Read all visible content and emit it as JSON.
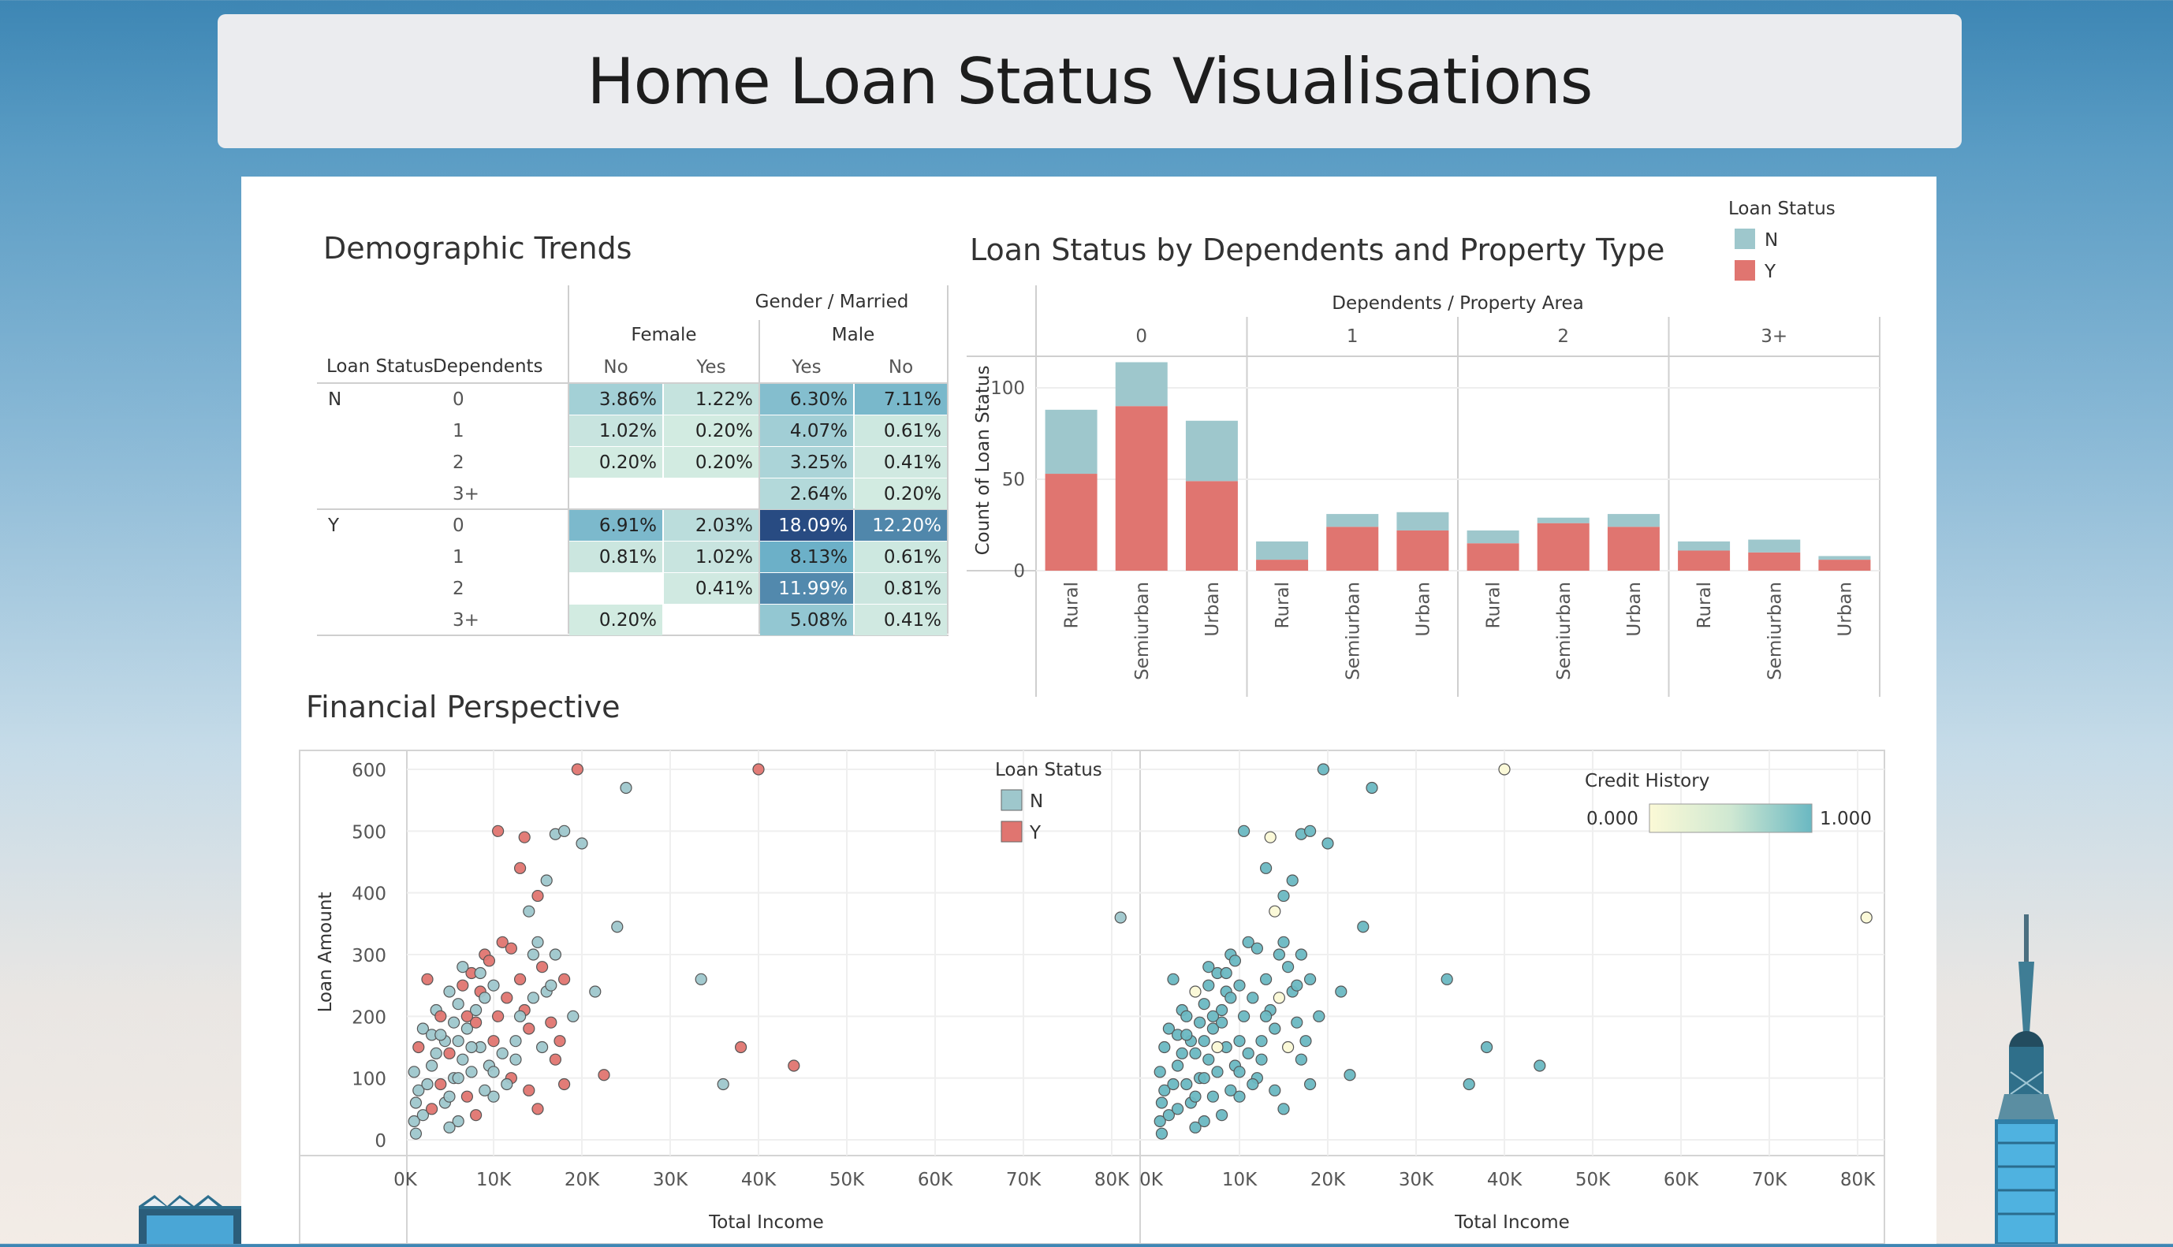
{
  "header": {
    "title": "Home Loan Status Visualisations"
  },
  "colors": {
    "N": "#9ec7cc",
    "Y": "#e07570",
    "axis": "#cfcfcf",
    "grid": "#eeeeee"
  },
  "demographic": {
    "title": "Demographic Trends",
    "top_header": "Gender / Married",
    "row_header_1": "Loan Status",
    "row_header_2": "Dependents",
    "genders": [
      "Female",
      "Male"
    ],
    "columns": [
      "No",
      "Yes",
      "Yes",
      "No"
    ],
    "statuses": [
      "N",
      "Y"
    ],
    "dependents": [
      "0",
      "1",
      "2",
      "3+"
    ],
    "cells": [
      [
        [
          "3.86%",
          "1.22%",
          "6.30%",
          "7.11%"
        ],
        [
          "1.02%",
          "0.20%",
          "4.07%",
          "0.61%"
        ],
        [
          "0.20%",
          "0.20%",
          "3.25%",
          "0.41%"
        ],
        [
          "",
          "",
          "2.64%",
          "0.20%"
        ]
      ],
      [
        [
          "6.91%",
          "2.03%",
          "18.09%",
          "12.20%"
        ],
        [
          "0.81%",
          "1.02%",
          "8.13%",
          "0.61%"
        ],
        [
          "",
          "0.41%",
          "11.99%",
          "0.81%"
        ],
        [
          "0.20%",
          "",
          "5.08%",
          "0.41%"
        ]
      ]
    ]
  },
  "bar_chart": {
    "title": "Loan Status by Dependents and Property Type",
    "top_header": "Dependents / Property Area",
    "ylabel": "Count of Loan Status",
    "legend_title": "Loan Status",
    "legend_items": [
      "N",
      "Y"
    ]
  },
  "financial": {
    "title": "Financial Perspective",
    "xlabel": "Total Income",
    "ylabel": "Loan Amount",
    "legend_title": "Loan Status",
    "legend_items": [
      "N",
      "Y"
    ],
    "credit_title": "Credit History",
    "credit_min": "0.000",
    "credit_max": "1.000"
  },
  "chart_data": [
    {
      "type": "table",
      "title": "Demographic Trends",
      "row_dims": [
        "Loan Status",
        "Dependents"
      ],
      "col_dims": [
        "Gender",
        "Married"
      ],
      "columns": [
        [
          "Female",
          "No"
        ],
        [
          "Female",
          "Yes"
        ],
        [
          "Male",
          "Yes"
        ],
        [
          "Male",
          "No"
        ]
      ],
      "values": [
        [
          3.86,
          1.22,
          6.3,
          7.11
        ],
        [
          1.02,
          0.2,
          4.07,
          0.61
        ],
        [
          0.2,
          0.2,
          3.25,
          0.41
        ],
        [
          null,
          null,
          2.64,
          0.2
        ],
        [
          6.91,
          2.03,
          18.09,
          12.2
        ],
        [
          0.81,
          1.02,
          8.13,
          0.61
        ],
        [
          null,
          0.41,
          11.99,
          0.81
        ],
        [
          0.2,
          null,
          5.08,
          0.41
        ]
      ]
    },
    {
      "type": "bar",
      "stacked": true,
      "title": "Loan Status by Dependents and Property Type",
      "groups": [
        "0",
        "1",
        "2",
        "3+"
      ],
      "categories": [
        "Rural",
        "Semiurban",
        "Urban"
      ],
      "ylabel": "Count of Loan Status",
      "ylim": [
        0,
        120
      ],
      "yticks": [
        0,
        50,
        100
      ],
      "series": [
        {
          "name": "Y",
          "values": [
            [
              53,
              90,
              49
            ],
            [
              6,
              24,
              22
            ],
            [
              15,
              26,
              24
            ],
            [
              11,
              10,
              6
            ]
          ]
        },
        {
          "name": "N",
          "values": [
            [
              35,
              24,
              33
            ],
            [
              10,
              7,
              10
            ],
            [
              7,
              3,
              7
            ],
            [
              5,
              7,
              2
            ]
          ]
        }
      ]
    },
    {
      "type": "scatter",
      "title": "Financial Perspective",
      "panels": [
        "Loan Status",
        "Credit History"
      ],
      "xlabel": "Total Income",
      "ylabel": "Loan Amount",
      "xlim": [
        0,
        85000
      ],
      "ylim": [
        0,
        620
      ],
      "xticks": [
        "0K",
        "10K",
        "20K",
        "30K",
        "40K",
        "50K",
        "60K",
        "70K",
        "80K"
      ],
      "yticks": [
        0,
        100,
        200,
        300,
        400,
        500,
        600
      ],
      "points": [
        [
          19500,
          600,
          "Y",
          1
        ],
        [
          25000,
          570,
          "N",
          1
        ],
        [
          40000,
          600,
          "Y",
          0
        ],
        [
          17000,
          495,
          "N",
          1
        ],
        [
          18000,
          500,
          "N",
          1
        ],
        [
          20000,
          480,
          "N",
          1
        ],
        [
          10500,
          500,
          "Y",
          1
        ],
        [
          13500,
          490,
          "Y",
          0
        ],
        [
          13000,
          440,
          "Y",
          1
        ],
        [
          16000,
          420,
          "N",
          1
        ],
        [
          15000,
          395,
          "Y",
          1
        ],
        [
          14000,
          370,
          "N",
          0
        ],
        [
          24000,
          345,
          "N",
          1
        ],
        [
          81000,
          360,
          "N",
          0
        ],
        [
          33500,
          260,
          "N",
          1
        ],
        [
          21500,
          240,
          "N",
          1
        ],
        [
          38000,
          150,
          "Y",
          1
        ],
        [
          36000,
          90,
          "N",
          1
        ],
        [
          44000,
          120,
          "Y",
          1
        ],
        [
          22500,
          105,
          "Y",
          1
        ],
        [
          18000,
          90,
          "Y",
          1
        ],
        [
          17000,
          130,
          "Y",
          1
        ],
        [
          12000,
          100,
          "Y",
          1
        ],
        [
          14000,
          80,
          "Y",
          1
        ],
        [
          15000,
          50,
          "Y",
          1
        ],
        [
          10000,
          70,
          "N",
          1
        ],
        [
          8000,
          40,
          "Y",
          1
        ],
        [
          6000,
          30,
          "N",
          1
        ],
        [
          5000,
          20,
          "N",
          1
        ],
        [
          2500,
          260,
          "Y",
          1
        ],
        [
          3500,
          210,
          "N",
          1
        ],
        [
          2000,
          180,
          "N",
          1
        ],
        [
          1500,
          150,
          "Y",
          1
        ],
        [
          1000,
          110,
          "N",
          1
        ],
        [
          1500,
          80,
          "N",
          1
        ],
        [
          1200,
          60,
          "N",
          1
        ],
        [
          1000,
          30,
          "N",
          1
        ],
        [
          1200,
          10,
          "N",
          1
        ],
        [
          3000,
          170,
          "N",
          1
        ],
        [
          4000,
          200,
          "Y",
          1
        ],
        [
          4500,
          160,
          "N",
          1
        ],
        [
          5000,
          140,
          "Y",
          1
        ],
        [
          5500,
          190,
          "N",
          1
        ],
        [
          6000,
          220,
          "N",
          1
        ],
        [
          6500,
          250,
          "Y",
          1
        ],
        [
          7000,
          180,
          "N",
          1
        ],
        [
          7500,
          270,
          "Y",
          1
        ],
        [
          8000,
          210,
          "N",
          1
        ],
        [
          8500,
          240,
          "Y",
          1
        ],
        [
          9000,
          300,
          "Y",
          1
        ],
        [
          9500,
          290,
          "Y",
          1
        ],
        [
          10000,
          250,
          "N",
          1
        ],
        [
          10500,
          200,
          "Y",
          1
        ],
        [
          11000,
          320,
          "Y",
          1
        ],
        [
          11500,
          230,
          "Y",
          1
        ],
        [
          12000,
          310,
          "Y",
          1
        ],
        [
          12500,
          160,
          "N",
          1
        ],
        [
          13000,
          260,
          "Y",
          1
        ],
        [
          13500,
          210,
          "Y",
          1
        ],
        [
          14000,
          180,
          "Y",
          1
        ],
        [
          14500,
          300,
          "N",
          1
        ],
        [
          15000,
          320,
          "N",
          1
        ],
        [
          15500,
          280,
          "Y",
          1
        ],
        [
          16000,
          240,
          "N",
          1
        ],
        [
          16500,
          190,
          "Y",
          1
        ],
        [
          17000,
          300,
          "N",
          1
        ],
        [
          17500,
          160,
          "Y",
          1
        ],
        [
          18000,
          260,
          "Y",
          1
        ],
        [
          19000,
          200,
          "N",
          1
        ],
        [
          3000,
          120,
          "N",
          1
        ],
        [
          4000,
          90,
          "Y",
          1
        ],
        [
          4500,
          60,
          "N",
          1
        ],
        [
          5500,
          100,
          "N",
          1
        ],
        [
          6500,
          130,
          "N",
          1
        ],
        [
          7000,
          70,
          "Y",
          1
        ],
        [
          7500,
          110,
          "N",
          1
        ],
        [
          8500,
          150,
          "N",
          1
        ],
        [
          9500,
          120,
          "N",
          1
        ],
        [
          10000,
          160,
          "Y",
          1
        ],
        [
          11000,
          140,
          "N",
          1
        ],
        [
          3500,
          140,
          "N",
          1
        ],
        [
          6000,
          160,
          "N",
          1
        ],
        [
          8000,
          190,
          "Y",
          1
        ],
        [
          9000,
          230,
          "N",
          1
        ],
        [
          5000,
          240,
          "N",
          0
        ],
        [
          7000,
          200,
          "Y",
          1
        ],
        [
          2000,
          40,
          "N",
          1
        ],
        [
          3000,
          50,
          "Y",
          1
        ],
        [
          2500,
          90,
          "N",
          1
        ],
        [
          4000,
          170,
          "N",
          1
        ],
        [
          6000,
          100,
          "N",
          1
        ],
        [
          5000,
          70,
          "N",
          1
        ],
        [
          9000,
          80,
          "N",
          1
        ],
        [
          10000,
          110,
          "N",
          1
        ],
        [
          11500,
          90,
          "N",
          1
        ],
        [
          12500,
          130,
          "N",
          1
        ],
        [
          7500,
          150,
          "N",
          0
        ],
        [
          13000,
          200,
          "N",
          1
        ],
        [
          14500,
          230,
          "N",
          0
        ],
        [
          15500,
          150,
          "N",
          0
        ],
        [
          16500,
          250,
          "N",
          1
        ],
        [
          8500,
          270,
          "N",
          1
        ],
        [
          6500,
          280,
          "N",
          1
        ]
      ]
    }
  ]
}
